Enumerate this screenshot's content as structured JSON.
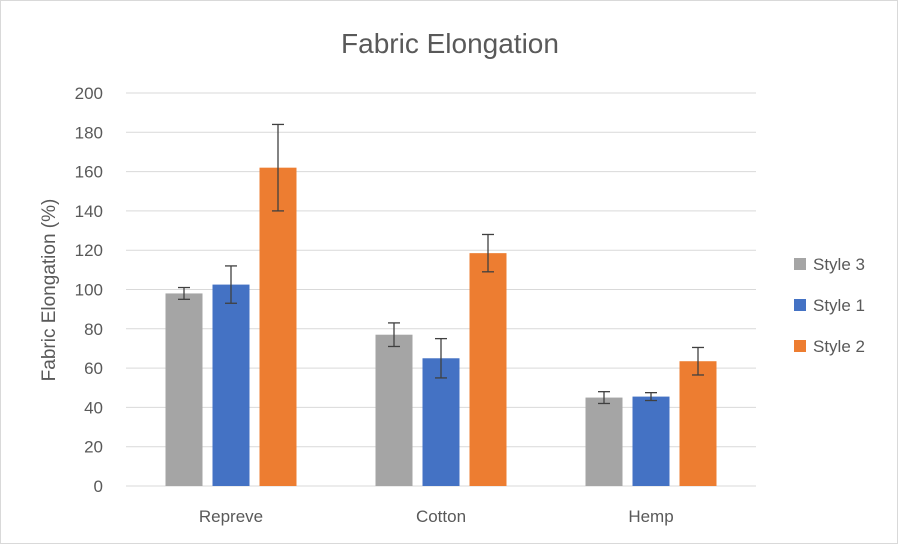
{
  "chart_data": {
    "type": "bar",
    "title": "Fabric Elongation",
    "xlabel": "",
    "ylabel": "Fabric Elongation (%)",
    "ylim": [
      0,
      200
    ],
    "yticks": [
      0,
      20,
      40,
      60,
      80,
      100,
      120,
      140,
      160,
      180,
      200
    ],
    "grid": true,
    "legend_position": "right",
    "categories": [
      "Repreve",
      "Cotton",
      "Hemp"
    ],
    "series": [
      {
        "name": "Style 3",
        "color": "#a5a5a5",
        "values": [
          98,
          77,
          45
        ],
        "errors": [
          3,
          6,
          3
        ]
      },
      {
        "name": "Style 1",
        "color": "#4472c4",
        "values": [
          102.5,
          65,
          45.5
        ],
        "errors": [
          9.5,
          10,
          2
        ]
      },
      {
        "name": "Style 2",
        "color": "#ed7d31",
        "values": [
          162,
          118.5,
          63.5
        ],
        "errors": [
          22,
          9.5,
          7
        ]
      }
    ]
  }
}
